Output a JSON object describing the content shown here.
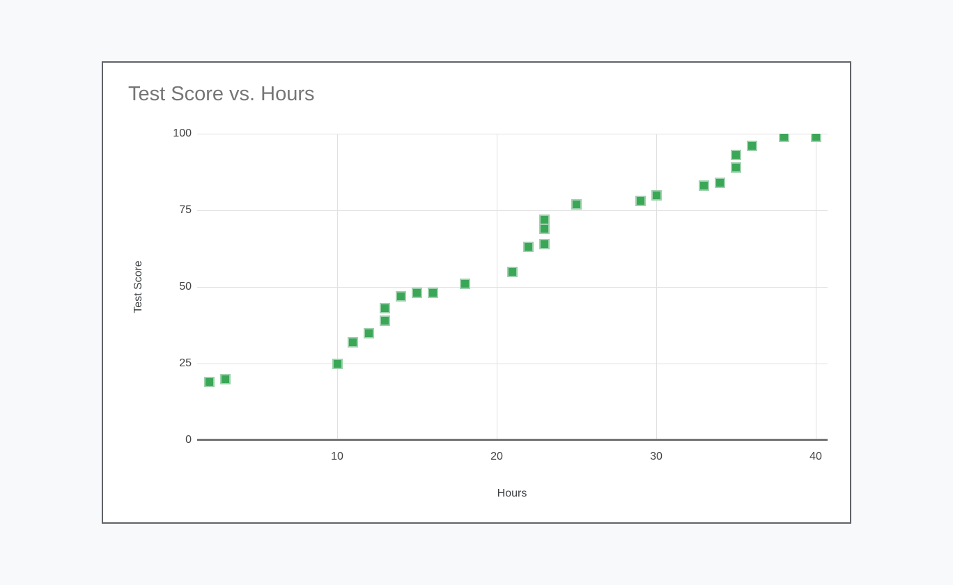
{
  "page": {
    "background": "#f8f9fa"
  },
  "card": {
    "background": "#ffffff",
    "border_color": "#5f6368"
  },
  "colors": {
    "title": "#757575",
    "tick_label": "#424242",
    "axis_title": "#3c4043",
    "gridline": "#e0e0e0",
    "axis_line": "#757575",
    "marker_fill": "#3aa757",
    "marker_border": "#9ed1ad"
  },
  "chart_data": {
    "type": "scatter",
    "title": "Test Score vs. Hours",
    "xlabel": "Hours",
    "ylabel": "Test Score",
    "x_ticks": [
      10,
      20,
      30,
      40
    ],
    "y_ticks": [
      0,
      25,
      50,
      75,
      100
    ],
    "xlim": [
      1.3,
      40.6
    ],
    "ylim": [
      0,
      100
    ],
    "grid": true,
    "legend": "none",
    "marker_shape": "square",
    "points": [
      [
        2,
        19
      ],
      [
        3,
        20
      ],
      [
        10,
        25
      ],
      [
        11,
        32
      ],
      [
        12,
        35
      ],
      [
        13,
        39
      ],
      [
        13,
        43
      ],
      [
        14,
        47
      ],
      [
        15,
        48
      ],
      [
        16,
        48
      ],
      [
        18,
        51
      ],
      [
        21,
        55
      ],
      [
        22,
        63
      ],
      [
        23,
        64
      ],
      [
        23,
        69
      ],
      [
        23,
        72
      ],
      [
        25,
        77
      ],
      [
        29,
        78
      ],
      [
        30,
        80
      ],
      [
        33,
        83
      ],
      [
        34,
        84
      ],
      [
        35,
        89
      ],
      [
        35,
        93
      ],
      [
        36,
        96
      ],
      [
        38,
        99
      ],
      [
        40,
        99
      ]
    ]
  }
}
